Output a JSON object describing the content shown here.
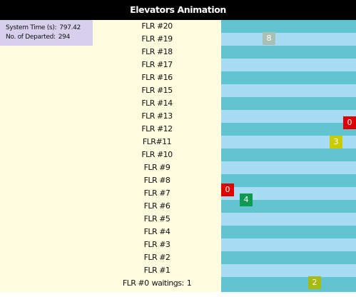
{
  "window": {
    "title": "Elevators Animation"
  },
  "stats": {
    "system_time_label": "System Time (s):",
    "system_time_value": "797.42",
    "departed_label": "No. of Departed:",
    "departed_value": "294"
  },
  "floors": [
    {
      "label": "FLR #20"
    },
    {
      "label": "FLR #19"
    },
    {
      "label": "FLR #18"
    },
    {
      "label": "FLR #17"
    },
    {
      "label": "FLR #16"
    },
    {
      "label": "FLR #15"
    },
    {
      "label": "FLR #14"
    },
    {
      "label": "FLR #13"
    },
    {
      "label": "FLR #12"
    },
    {
      "label": "FLR#11"
    },
    {
      "label": "FLR #10"
    },
    {
      "label": "FLR #9"
    },
    {
      "label": "FLR #8"
    },
    {
      "label": "FLR #7"
    },
    {
      "label": "FLR #6"
    },
    {
      "label": "FLR #5"
    },
    {
      "label": "FLR #4"
    },
    {
      "label": "FLR #3"
    },
    {
      "label": "FLR #2"
    },
    {
      "label": "FLR #1"
    },
    {
      "label": "FLR #0",
      "waiting_label": "waitings:",
      "waiting_value": "1"
    }
  ],
  "elevators": [
    {
      "id": "car-19",
      "count": "8",
      "color": "#aac0b4"
    },
    {
      "id": "car-12",
      "count": "0",
      "color": "#dd0000"
    },
    {
      "id": "car-11",
      "count": "3",
      "color": "#c8cc00"
    },
    {
      "id": "car-7",
      "count": "0",
      "color": "#dd0000"
    },
    {
      "id": "car-6",
      "count": "4",
      "color": "#0e9a50"
    },
    {
      "id": "car-0",
      "count": "2",
      "color": "#a6bc12"
    }
  ],
  "colors": {
    "title_bg": "#000000",
    "panel_bg": "#fffce0",
    "info_bg": "#d6d0ec",
    "band_dark": "#62c4d0",
    "band_light": "#a8dcf4"
  }
}
